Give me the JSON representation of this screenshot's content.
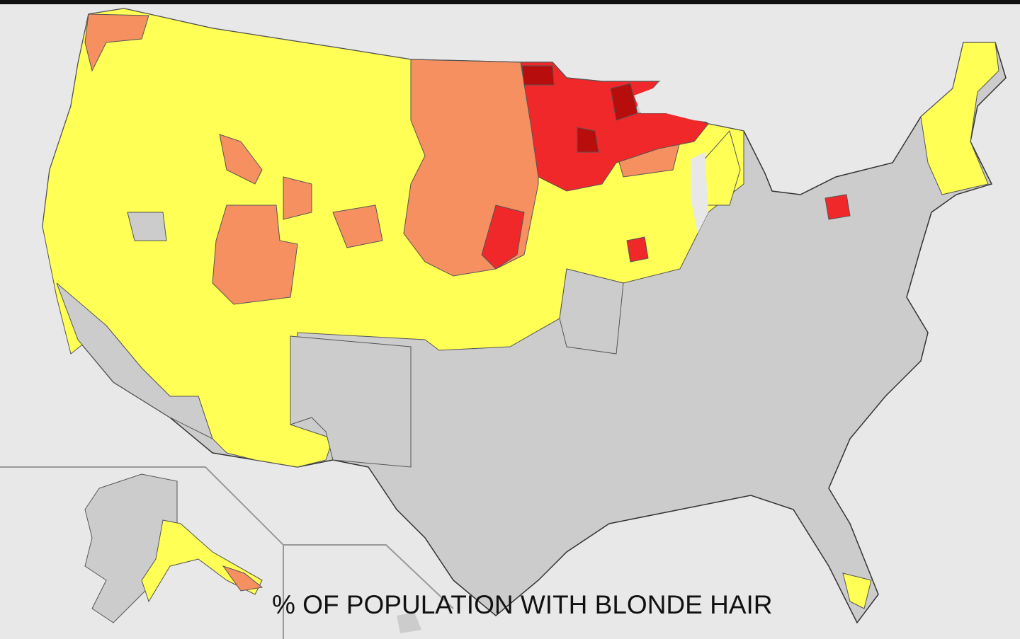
{
  "title": "% OF POPULATION WITH BLONDE HAIR",
  "colors": {
    "background": "#e8e8e8",
    "no_data_or_lowest": "#cccccc",
    "low": "#ffff55",
    "medium": "#f69060",
    "high": "#f0282a",
    "highest": "#b80d0d",
    "borders": "#333333"
  }
}
